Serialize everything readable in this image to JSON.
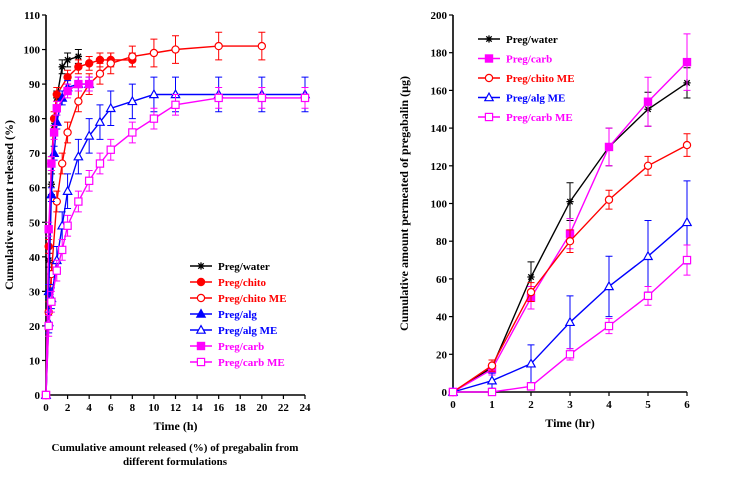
{
  "chart_data": [
    {
      "type": "line",
      "xlabel": "Time (h)",
      "ylabel": "Cumulative amount released (%)",
      "xlim": [
        0,
        24
      ],
      "ylim": [
        0,
        110
      ],
      "x_ticks": [
        0,
        2,
        4,
        6,
        8,
        10,
        12,
        14,
        16,
        18,
        20,
        22,
        24
      ],
      "y_ticks": [
        0,
        10,
        20,
        30,
        40,
        50,
        60,
        70,
        80,
        90,
        100,
        110
      ],
      "legend_position": "bottom-right",
      "caption_lines": [
        "Cumulative amount released (%) of pregabalin from",
        "different formulations"
      ],
      "series": [
        {
          "name": "Preg/water",
          "color": "#000000",
          "marker": "star",
          "points": [
            [
              0,
              0
            ],
            [
              0.25,
              39
            ],
            [
              0.5,
              61
            ],
            [
              0.75,
              78
            ],
            [
              1,
              86
            ],
            [
              1.5,
              95
            ],
            [
              2,
              97
            ],
            [
              3,
              98
            ]
          ],
          "err": [
            0,
            2,
            3,
            2,
            2,
            2,
            2,
            2
          ]
        },
        {
          "name": "Preg/chito",
          "color": "#ff0000",
          "marker": "circle-filled",
          "points": [
            [
              0,
              0
            ],
            [
              0.25,
              43
            ],
            [
              0.5,
              67
            ],
            [
              0.75,
              80
            ],
            [
              1,
              87
            ],
            [
              2,
              92
            ],
            [
              3,
              95
            ],
            [
              4,
              96
            ],
            [
              5,
              97
            ],
            [
              6,
              97
            ],
            [
              8,
              97
            ]
          ],
          "err": [
            0,
            2,
            2,
            2,
            2,
            2,
            2,
            2,
            2,
            2,
            2
          ]
        },
        {
          "name": "Preg/chito ME",
          "color": "#ff0000",
          "marker": "circle-open",
          "points": [
            [
              0,
              0
            ],
            [
              0.25,
              24
            ],
            [
              0.5,
              35
            ],
            [
              1,
              56
            ],
            [
              1.5,
              67
            ],
            [
              2,
              76
            ],
            [
              3,
              85
            ],
            [
              4,
              90
            ],
            [
              5,
              93
            ],
            [
              6,
              96
            ],
            [
              8,
              98
            ],
            [
              10,
              99
            ],
            [
              12,
              100
            ],
            [
              16,
              101
            ],
            [
              20,
              101
            ]
          ],
          "err": [
            0,
            3,
            3,
            3,
            3,
            3,
            3,
            3,
            3,
            3,
            3,
            4,
            4,
            4,
            4
          ]
        },
        {
          "name": "Preg/alg",
          "color": "#0000ff",
          "marker": "triangle-filled",
          "points": [
            [
              0,
              0
            ],
            [
              0.25,
              30
            ],
            [
              0.5,
              58
            ],
            [
              0.75,
              70
            ],
            [
              1,
              79
            ],
            [
              1.5,
              86
            ],
            [
              2,
              89
            ],
            [
              3,
              90
            ],
            [
              4,
              90
            ]
          ],
          "err": [
            0,
            2,
            2,
            2,
            2,
            2,
            2,
            2,
            2
          ]
        },
        {
          "name": "Preg/alg ME",
          "color": "#0000ff",
          "marker": "triangle-open",
          "points": [
            [
              0,
              0
            ],
            [
              0.25,
              21
            ],
            [
              0.5,
              28
            ],
            [
              1,
              39
            ],
            [
              1.5,
              49
            ],
            [
              2,
              59
            ],
            [
              3,
              69
            ],
            [
              4,
              75
            ],
            [
              5,
              79
            ],
            [
              6,
              83
            ],
            [
              8,
              85
            ],
            [
              10,
              87
            ],
            [
              12,
              87
            ],
            [
              16,
              87
            ],
            [
              20,
              87
            ],
            [
              24,
              87
            ]
          ],
          "err": [
            0,
            3,
            3,
            4,
            4,
            5,
            5,
            5,
            5,
            5,
            5,
            5,
            5,
            5,
            5,
            5
          ]
        },
        {
          "name": "Preg/carb",
          "color": "#ff00ff",
          "marker": "square-filled",
          "points": [
            [
              0,
              0
            ],
            [
              0.25,
              48
            ],
            [
              0.5,
              67
            ],
            [
              0.75,
              76
            ],
            [
              1,
              83
            ],
            [
              2,
              88
            ],
            [
              3,
              90
            ],
            [
              4,
              90
            ]
          ],
          "err": [
            0,
            2,
            2,
            2,
            2,
            2,
            2,
            2
          ]
        },
        {
          "name": "Preg/carb ME",
          "color": "#ff00ff",
          "marker": "square-open",
          "points": [
            [
              0,
              0
            ],
            [
              0.25,
              20
            ],
            [
              0.5,
              27
            ],
            [
              1,
              36
            ],
            [
              1.5,
              42
            ],
            [
              2,
              49
            ],
            [
              3,
              56
            ],
            [
              4,
              62
            ],
            [
              5,
              67
            ],
            [
              6,
              71
            ],
            [
              8,
              76
            ],
            [
              10,
              80
            ],
            [
              12,
              84
            ],
            [
              16,
              86
            ],
            [
              20,
              86
            ],
            [
              24,
              86
            ]
          ],
          "err": [
            0,
            3,
            3,
            3,
            3,
            3,
            3,
            3,
            3,
            3,
            3,
            3,
            3,
            3,
            3,
            3
          ]
        }
      ]
    },
    {
      "type": "line",
      "xlabel": "Time (hr)",
      "ylabel": "Cumulative amount permeated of pregabalin (µg)",
      "xlim": [
        0,
        6
      ],
      "ylim": [
        0,
        200
      ],
      "x_ticks": [
        0,
        1,
        2,
        3,
        4,
        5,
        6
      ],
      "y_ticks": [
        0,
        20,
        40,
        60,
        80,
        100,
        120,
        140,
        160,
        180,
        200
      ],
      "legend_position": "top-left",
      "series": [
        {
          "name": "Preg/water",
          "color": "#000000",
          "marker": "star",
          "points": [
            [
              0,
              0
            ],
            [
              1,
              13
            ],
            [
              2,
              61
            ],
            [
              3,
              101
            ],
            [
              4,
              130
            ],
            [
              5,
              150
            ],
            [
              6,
              164
            ]
          ],
          "err": [
            0,
            4,
            8,
            10,
            10,
            9,
            8
          ]
        },
        {
          "name": "Preg/carb",
          "color": "#ff00ff",
          "marker": "square-filled",
          "points": [
            [
              0,
              0
            ],
            [
              1,
              12
            ],
            [
              2,
              50
            ],
            [
              3,
              84
            ],
            [
              4,
              130
            ],
            [
              5,
              154
            ],
            [
              6,
              175
            ]
          ],
          "err": [
            0,
            3,
            6,
            8,
            10,
            13,
            15
          ]
        },
        {
          "name": "Preg/chito ME",
          "color": "#ff0000",
          "marker": "circle-open",
          "points": [
            [
              0,
              0
            ],
            [
              1,
              14
            ],
            [
              2,
              53
            ],
            [
              3,
              80
            ],
            [
              4,
              102
            ],
            [
              5,
              120
            ],
            [
              6,
              131
            ]
          ],
          "err": [
            0,
            3,
            5,
            6,
            5,
            5,
            6
          ]
        },
        {
          "name": "Preg/alg ME",
          "color": "#0000ff",
          "marker": "triangle-open",
          "points": [
            [
              0,
              0
            ],
            [
              1,
              6
            ],
            [
              2,
              15
            ],
            [
              3,
              37
            ],
            [
              4,
              56
            ],
            [
              5,
              72
            ],
            [
              6,
              90
            ]
          ],
          "err": [
            0,
            4,
            10,
            14,
            16,
            19,
            22
          ]
        },
        {
          "name": "Preg/carb ME",
          "color": "#ff00ff",
          "marker": "square-open",
          "points": [
            [
              0,
              0
            ],
            [
              1,
              0
            ],
            [
              2,
              3
            ],
            [
              3,
              20
            ],
            [
              4,
              35
            ],
            [
              5,
              51
            ],
            [
              6,
              70
            ]
          ],
          "err": [
            0,
            1,
            2,
            3,
            4,
            5,
            8
          ]
        }
      ]
    }
  ]
}
